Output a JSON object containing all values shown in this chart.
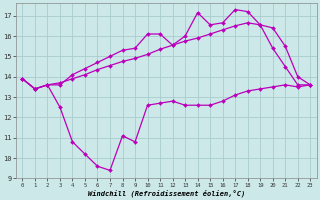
{
  "xlabel": "Windchill (Refroidissement éolien,°C)",
  "x": [
    0,
    1,
    2,
    3,
    4,
    5,
    6,
    7,
    8,
    9,
    10,
    11,
    12,
    13,
    14,
    15,
    16,
    17,
    18,
    19,
    20,
    21,
    22,
    23
  ],
  "line1": [
    13.9,
    13.4,
    13.6,
    12.5,
    10.8,
    10.2,
    9.6,
    9.4,
    11.1,
    10.8,
    12.6,
    12.7,
    12.8,
    12.6,
    12.6,
    12.6,
    12.8,
    13.1,
    13.3,
    13.4,
    13.5,
    13.6,
    13.5,
    13.6
  ],
  "line2": [
    13.9,
    13.4,
    13.6,
    13.6,
    14.1,
    14.4,
    14.7,
    15.0,
    15.3,
    15.4,
    16.1,
    16.1,
    15.55,
    16.0,
    17.15,
    16.55,
    16.65,
    17.3,
    17.2,
    16.55,
    15.4,
    14.5,
    13.6,
    13.6
  ],
  "line3": [
    13.9,
    13.4,
    13.6,
    13.7,
    13.9,
    14.1,
    14.35,
    14.55,
    14.75,
    14.9,
    15.1,
    15.35,
    15.55,
    15.75,
    15.9,
    16.1,
    16.3,
    16.5,
    16.65,
    16.55,
    16.4,
    15.5,
    14.0,
    13.6
  ],
  "line_color": "#bb00bb",
  "background_color": "#cce8e8",
  "grid_color": "#aacccc",
  "ylim": [
    9,
    17.6
  ],
  "yticks": [
    9,
    10,
    11,
    12,
    13,
    14,
    15,
    16,
    17
  ],
  "xlim": [
    -0.5,
    23.5
  ],
  "xticks": [
    0,
    1,
    2,
    3,
    4,
    5,
    6,
    7,
    8,
    9,
    10,
    11,
    12,
    13,
    14,
    15,
    16,
    17,
    18,
    19,
    20,
    21,
    22,
    23
  ]
}
